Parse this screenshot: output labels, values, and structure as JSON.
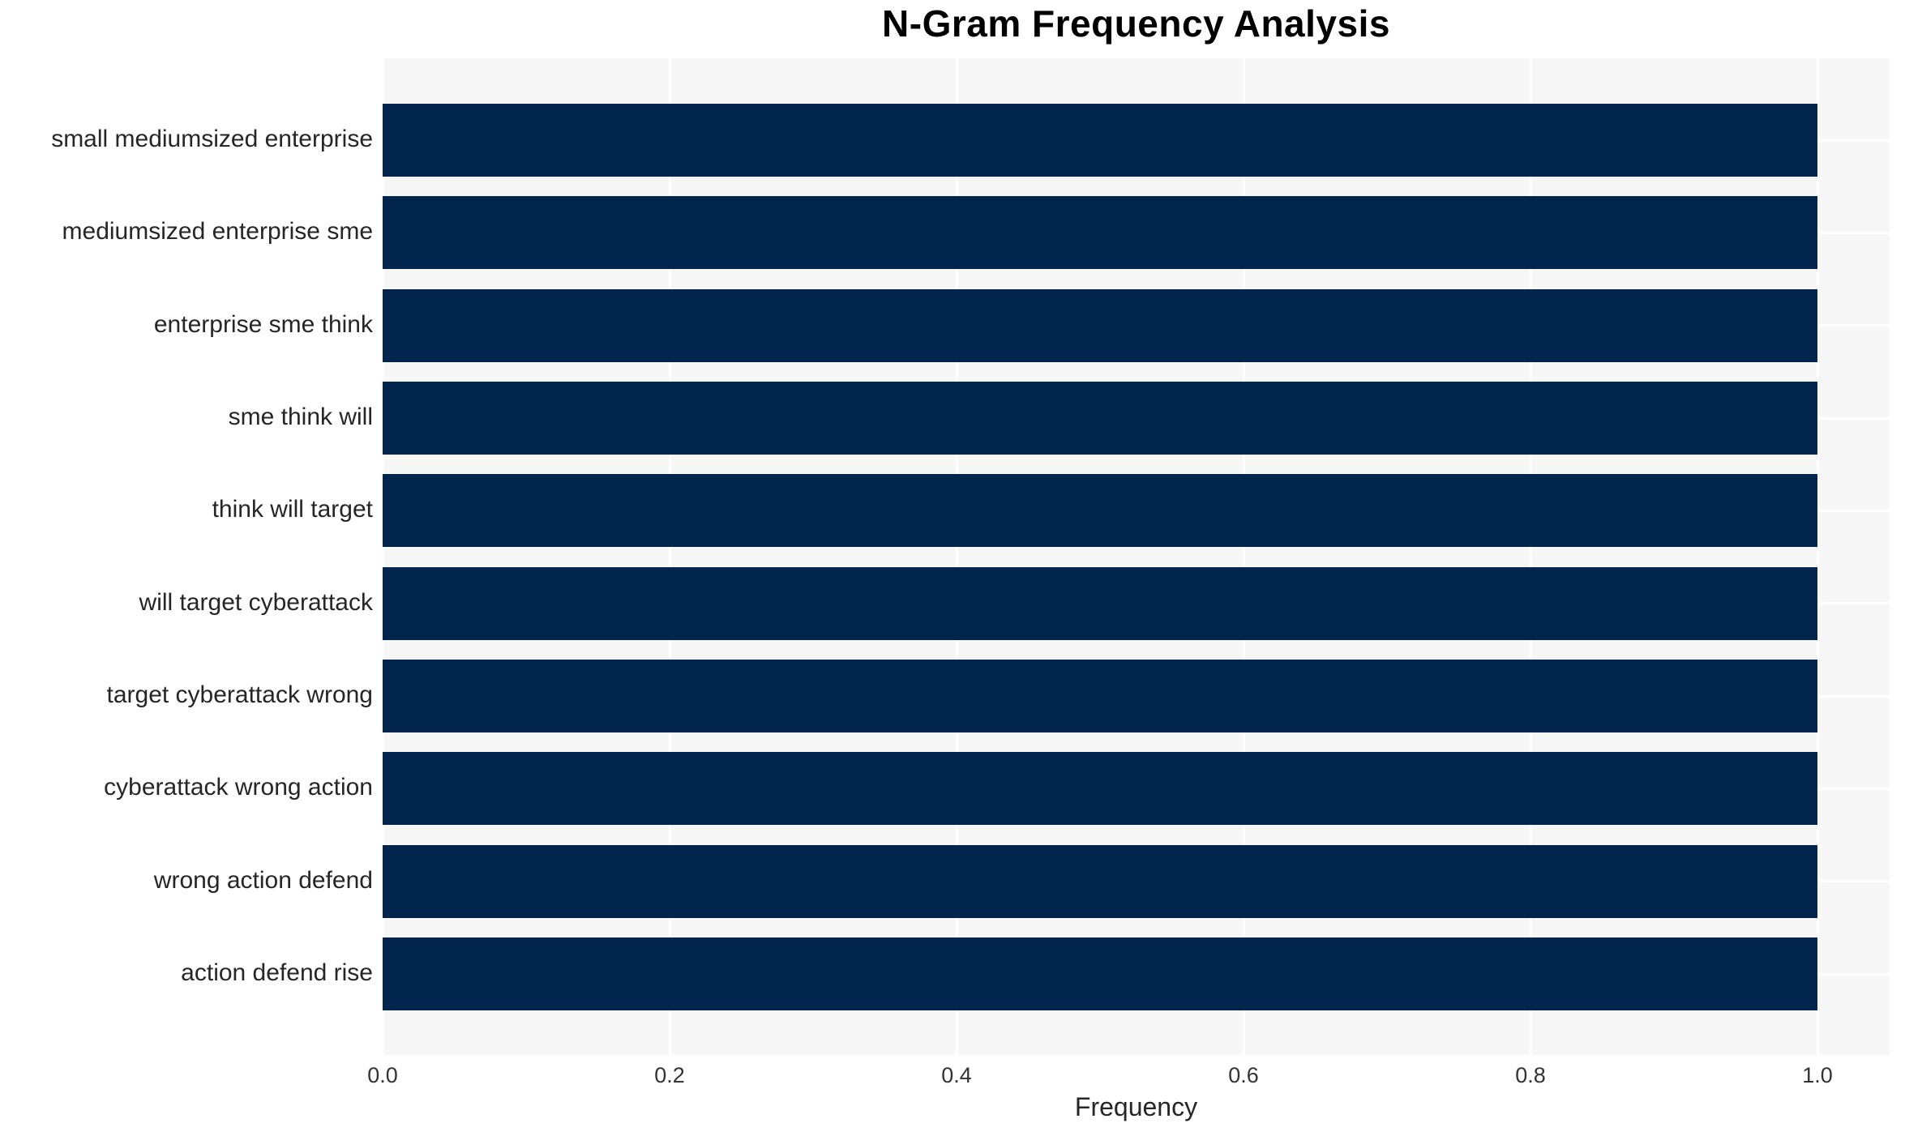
{
  "chart_data": {
    "type": "bar",
    "orientation": "horizontal",
    "title": "N-Gram Frequency Analysis",
    "xlabel": "Frequency",
    "ylabel": "",
    "categories": [
      "small mediumsized enterprise",
      "mediumsized enterprise sme",
      "enterprise sme think",
      "sme think will",
      "think will target",
      "will target cyberattack",
      "target cyberattack wrong",
      "cyberattack wrong action",
      "wrong action defend",
      "action defend rise"
    ],
    "values": [
      1.0,
      1.0,
      1.0,
      1.0,
      1.0,
      1.0,
      1.0,
      1.0,
      1.0,
      1.0
    ],
    "xticks": [
      "0.0",
      "0.2",
      "0.4",
      "0.6",
      "0.8",
      "1.0"
    ],
    "xtick_values": [
      0.0,
      0.2,
      0.4,
      0.6,
      0.8,
      1.0
    ],
    "xlim": [
      0.0,
      1.05
    ],
    "grid": true,
    "legend": false,
    "colors": {
      "bar": "#02254d",
      "plot_background": "#f7f7f7",
      "grid_line": "#ffffff",
      "tick_text": "#333333",
      "label_text": "#262626",
      "title_text": "#000000"
    }
  }
}
